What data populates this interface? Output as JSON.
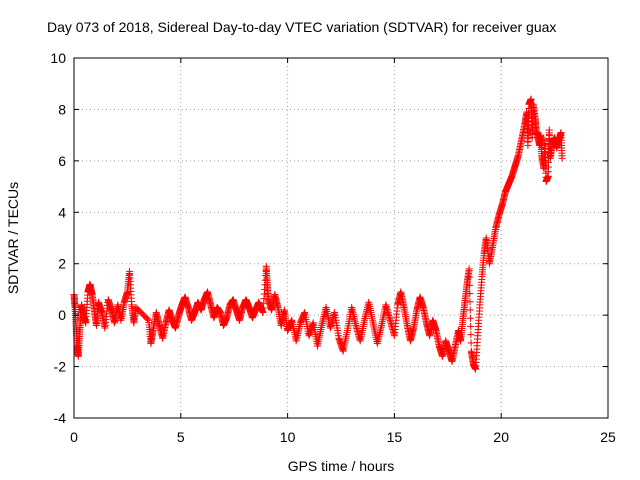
{
  "chart_data": {
    "type": "scatter",
    "title": "Day 073 of 2018, Sidereal Day-to-day VTEC variation (SDTVAR) for receiver guax",
    "xlabel": "GPS time / hours",
    "ylabel": "SDTVAR / TECUs",
    "xlim": [
      0,
      25
    ],
    "ylim": [
      -4,
      10
    ],
    "xticks": [
      0,
      5,
      10,
      15,
      20,
      25
    ],
    "yticks": [
      -4,
      -2,
      0,
      2,
      4,
      6,
      8,
      10
    ],
    "grid": true,
    "marker": "+",
    "series": [
      {
        "name": "SDTVAR",
        "color": "#ff0000",
        "points": [
          [
            0.0,
            0.8
          ],
          [
            0.05,
            0.3
          ],
          [
            0.1,
            -0.5
          ],
          [
            0.15,
            -1.2
          ],
          [
            0.2,
            -1.6
          ],
          [
            0.25,
            -0.9
          ],
          [
            0.3,
            -0.2
          ],
          [
            0.35,
            0.4
          ],
          [
            0.45,
            0.0
          ],
          [
            0.55,
            -0.3
          ],
          [
            0.65,
            0.9
          ],
          [
            0.75,
            1.2
          ],
          [
            0.85,
            0.8
          ],
          [
            0.95,
            0.2
          ],
          [
            1.05,
            -0.4
          ],
          [
            1.15,
            0.5
          ],
          [
            1.3,
            0.1
          ],
          [
            1.45,
            -0.5
          ],
          [
            1.6,
            0.6
          ],
          [
            1.75,
            0.2
          ],
          [
            1.9,
            -0.3
          ],
          [
            2.05,
            0.4
          ],
          [
            2.2,
            -0.2
          ],
          [
            2.35,
            0.5
          ],
          [
            2.5,
            0.9
          ],
          [
            2.6,
            1.7
          ],
          [
            2.7,
            0.4
          ],
          [
            2.8,
            -0.3
          ],
          [
            2.9,
            0.3
          ],
          [
            3.5,
            -0.2
          ],
          [
            3.6,
            -1.1
          ],
          [
            3.7,
            -0.6
          ],
          [
            3.85,
            0.1
          ],
          [
            4.0,
            -0.4
          ],
          [
            4.15,
            -0.9
          ],
          [
            4.3,
            -0.3
          ],
          [
            4.45,
            0.2
          ],
          [
            4.6,
            -0.2
          ],
          [
            4.75,
            -0.5
          ],
          [
            4.9,
            0.0
          ],
          [
            5.05,
            0.4
          ],
          [
            5.2,
            0.7
          ],
          [
            5.35,
            0.3
          ],
          [
            5.5,
            -0.2
          ],
          [
            5.65,
            0.1
          ],
          [
            5.8,
            0.5
          ],
          [
            5.95,
            0.2
          ],
          [
            6.1,
            0.6
          ],
          [
            6.25,
            0.9
          ],
          [
            6.4,
            0.4
          ],
          [
            6.55,
            -0.1
          ],
          [
            6.7,
            0.3
          ],
          [
            6.85,
            0.1
          ],
          [
            7.0,
            -0.4
          ],
          [
            7.15,
            -0.1
          ],
          [
            7.3,
            0.4
          ],
          [
            7.45,
            0.6
          ],
          [
            7.6,
            0.2
          ],
          [
            7.75,
            -0.2
          ],
          [
            7.9,
            0.3
          ],
          [
            8.05,
            0.6
          ],
          [
            8.2,
            0.3
          ],
          [
            8.35,
            -0.1
          ],
          [
            8.5,
            0.2
          ],
          [
            8.65,
            0.5
          ],
          [
            8.85,
            0.1
          ],
          [
            9.0,
            1.9
          ],
          [
            9.05,
            1.2
          ],
          [
            9.1,
            0.6
          ],
          [
            9.25,
            0.2
          ],
          [
            9.4,
            0.8
          ],
          [
            9.55,
            0.3
          ],
          [
            9.7,
            -0.4
          ],
          [
            9.85,
            0.2
          ],
          [
            10.0,
            -0.6
          ],
          [
            10.2,
            -0.2
          ],
          [
            10.4,
            -1.0
          ],
          [
            10.6,
            -0.3
          ],
          [
            10.8,
            0.1
          ],
          [
            11.0,
            -0.8
          ],
          [
            11.2,
            -0.3
          ],
          [
            11.4,
            -1.2
          ],
          [
            11.6,
            -0.4
          ],
          [
            11.8,
            0.3
          ],
          [
            12.0,
            -0.5
          ],
          [
            12.2,
            0.1
          ],
          [
            12.4,
            -0.9
          ],
          [
            12.6,
            -1.4
          ],
          [
            12.8,
            -0.6
          ],
          [
            13.0,
            0.3
          ],
          [
            13.2,
            -0.4
          ],
          [
            13.4,
            -1.0
          ],
          [
            13.6,
            -0.2
          ],
          [
            13.8,
            0.5
          ],
          [
            14.0,
            -0.3
          ],
          [
            14.2,
            -1.1
          ],
          [
            14.4,
            -0.4
          ],
          [
            14.6,
            0.4
          ],
          [
            14.8,
            -0.2
          ],
          [
            15.0,
            -0.8
          ],
          [
            15.15,
            0.4
          ],
          [
            15.3,
            0.9
          ],
          [
            15.45,
            0.3
          ],
          [
            15.6,
            -0.4
          ],
          [
            15.75,
            -1.0
          ],
          [
            15.9,
            -0.5
          ],
          [
            16.05,
            0.2
          ],
          [
            16.2,
            0.7
          ],
          [
            16.35,
            0.3
          ],
          [
            16.5,
            -0.3
          ],
          [
            16.65,
            -0.8
          ],
          [
            16.8,
            -0.2
          ],
          [
            16.95,
            -0.6
          ],
          [
            17.1,
            -1.2
          ],
          [
            17.25,
            -1.6
          ],
          [
            17.4,
            -1.0
          ],
          [
            17.55,
            -1.4
          ],
          [
            17.7,
            -1.8
          ],
          [
            17.85,
            -1.2
          ],
          [
            18.0,
            -0.6
          ],
          [
            18.1,
            -1.0
          ],
          [
            18.2,
            -0.2
          ],
          [
            18.3,
            0.5
          ],
          [
            18.4,
            1.2
          ],
          [
            18.5,
            1.8
          ],
          [
            18.6,
            -1.4
          ],
          [
            18.7,
            -1.9
          ],
          [
            18.8,
            -2.1
          ],
          [
            18.9,
            -0.8
          ],
          [
            19.0,
            0.4
          ],
          [
            19.1,
            1.5
          ],
          [
            19.2,
            2.4
          ],
          [
            19.3,
            3.0
          ],
          [
            19.45,
            2.0
          ],
          [
            19.6,
            2.7
          ],
          [
            19.75,
            3.4
          ],
          [
            19.9,
            3.9
          ],
          [
            20.05,
            4.3
          ],
          [
            20.2,
            4.8
          ],
          [
            20.35,
            5.1
          ],
          [
            20.5,
            5.4
          ],
          [
            20.65,
            5.8
          ],
          [
            20.8,
            6.2
          ],
          [
            20.95,
            6.8
          ],
          [
            21.1,
            7.4
          ],
          [
            21.2,
            7.9
          ],
          [
            21.3,
            8.2
          ],
          [
            21.4,
            8.4
          ],
          [
            21.5,
            8.2
          ],
          [
            21.6,
            7.6
          ],
          [
            21.7,
            7.0
          ],
          [
            21.8,
            6.6
          ],
          [
            21.9,
            6.2
          ],
          [
            22.0,
            5.7
          ],
          [
            22.1,
            5.2
          ],
          [
            22.2,
            5.4
          ],
          [
            22.3,
            6.1
          ],
          [
            22.4,
            6.7
          ],
          [
            22.5,
            6.9
          ],
          [
            22.6,
            6.5
          ],
          [
            22.7,
            6.8
          ],
          [
            22.8,
            7.1
          ],
          [
            22.85,
            6.1
          ],
          [
            21.25,
            6.6
          ],
          [
            21.45,
            6.9
          ],
          [
            21.65,
            7.1
          ],
          [
            21.85,
            7.0
          ],
          [
            22.05,
            6.8
          ],
          [
            22.25,
            7.2
          ]
        ]
      }
    ]
  }
}
